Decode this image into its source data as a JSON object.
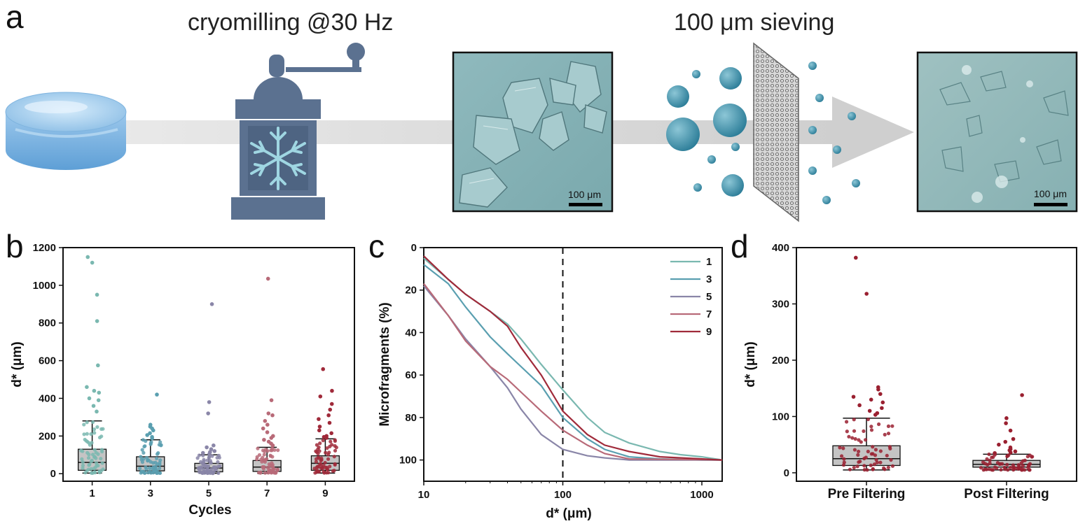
{
  "panel_a": {
    "letter": "a",
    "step1_label": "cryomilling @30 Hz",
    "step2_label": "100 μm sieving",
    "scale1": "100 μm",
    "scale2": "100 μm",
    "icons": [
      "ice-disc-icon",
      "grinder-icon",
      "snowflake-icon",
      "sieve-mesh-icon",
      "particle-icon",
      "arrow-icon"
    ]
  },
  "chart_data": [
    {
      "panel": "b",
      "type": "box",
      "xlabel": "Cycles",
      "ylabel": "d* (μm)",
      "ylim": [
        -40,
        1200
      ],
      "yticks": [
        0,
        200,
        400,
        600,
        800,
        1000,
        1200
      ],
      "categories": [
        "1",
        "3",
        "5",
        "7",
        "9"
      ],
      "colors": [
        "#7ab8b0",
        "#5a9fb0",
        "#8a86a8",
        "#b86a78",
        "#a02a3a"
      ],
      "boxes": [
        {
          "q1": 18,
          "median": 60,
          "q3": 130,
          "whisker_low": 3,
          "whisker_high": 280
        },
        {
          "q1": 15,
          "median": 40,
          "q3": 90,
          "whisker_low": 3,
          "whisker_high": 180
        },
        {
          "q1": 10,
          "median": 30,
          "q3": 55,
          "whisker_low": 2,
          "whisker_high": 100
        },
        {
          "q1": 12,
          "median": 35,
          "q3": 70,
          "whisker_low": 2,
          "whisker_high": 140
        },
        {
          "q1": 18,
          "median": 55,
          "q3": 95,
          "whisker_low": 3,
          "whisker_high": 185
        }
      ],
      "outliers": [
        [
          1150,
          1120,
          950,
          810,
          575,
          460,
          440,
          430,
          400,
          390,
          360,
          330
        ],
        [
          420,
          260,
          250,
          240,
          230,
          215,
          205,
          195,
          188
        ],
        [
          900,
          380,
          320,
          150,
          140,
          130,
          120,
          115,
          110,
          105
        ],
        [
          1035,
          390,
          320,
          310,
          280,
          260,
          240,
          220,
          200,
          190,
          180,
          170,
          160,
          150
        ],
        [
          555,
          440,
          410,
          370,
          340,
          310,
          290,
          270,
          250,
          230,
          215,
          200,
          195,
          190
        ]
      ]
    },
    {
      "panel": "c",
      "type": "line",
      "xlabel": "d* (μm)",
      "ylabel": "Microfragments (%)",
      "xscale": "log",
      "xlim": [
        10,
        1400
      ],
      "ylim": [
        0,
        110
      ],
      "y_inverted": true,
      "xticks": [
        10,
        100,
        1000
      ],
      "yticks": [
        0,
        20,
        40,
        60,
        80,
        100
      ],
      "reference_line_x": 100,
      "legend_position": "top-right",
      "series": [
        {
          "name": "1",
          "color": "#7ab8b0",
          "x": [
            10,
            15,
            20,
            30,
            40,
            50,
            70,
            100,
            150,
            200,
            300,
            500,
            700,
            1000,
            1400
          ],
          "y": [
            5,
            15,
            22,
            30,
            36,
            43,
            55,
            67,
            80,
            87,
            92,
            96,
            97.5,
            98.5,
            100
          ]
        },
        {
          "name": "3",
          "color": "#5a9fb0",
          "x": [
            10,
            15,
            20,
            30,
            40,
            50,
            70,
            100,
            150,
            200,
            300,
            500,
            1000,
            1400
          ],
          "y": [
            8,
            17,
            28,
            42,
            50,
            56,
            65,
            80,
            90,
            95,
            98.5,
            99.5,
            100,
            100
          ]
        },
        {
          "name": "5",
          "color": "#8a86a8",
          "x": [
            10,
            15,
            20,
            30,
            40,
            50,
            70,
            100,
            150,
            200,
            300,
            1400
          ],
          "y": [
            18,
            32,
            43,
            56,
            66,
            76,
            88,
            95,
            98,
            99,
            100,
            100
          ]
        },
        {
          "name": "7",
          "color": "#b86a78",
          "x": [
            10,
            15,
            20,
            30,
            40,
            50,
            70,
            100,
            150,
            200,
            300,
            1400
          ],
          "y": [
            17,
            32,
            44,
            56,
            62,
            68,
            77,
            86,
            93,
            97,
            99.5,
            100
          ]
        },
        {
          "name": "9",
          "color": "#a02a3a",
          "x": [
            10,
            15,
            20,
            30,
            40,
            50,
            70,
            100,
            150,
            200,
            300,
            500,
            1400
          ],
          "y": [
            4,
            15,
            22,
            30,
            37,
            47,
            60,
            77,
            88,
            93,
            96,
            98.5,
            100
          ]
        }
      ]
    },
    {
      "panel": "d",
      "type": "box",
      "ylabel": "d* (μm)",
      "ylim": [
        -15,
        400
      ],
      "yticks": [
        0,
        100,
        200,
        300,
        400
      ],
      "categories": [
        "Pre Filtering",
        "Post Filtering"
      ],
      "colors": [
        "#9a2030",
        "#9a2030"
      ],
      "boxes": [
        {
          "q1": 13,
          "median": 25,
          "q3": 48,
          "whisker_low": 5,
          "whisker_high": 97
        },
        {
          "q1": 10,
          "median": 15,
          "q3": 22,
          "whisker_low": 5,
          "whisker_high": 33
        }
      ],
      "outliers": [
        [
          382,
          318,
          152,
          148,
          140,
          135,
          130,
          125,
          120,
          115,
          110,
          106,
          103
        ],
        [
          138,
          97,
          88,
          75,
          60,
          55,
          50,
          45,
          42,
          40,
          38,
          36,
          35
        ]
      ]
    }
  ]
}
